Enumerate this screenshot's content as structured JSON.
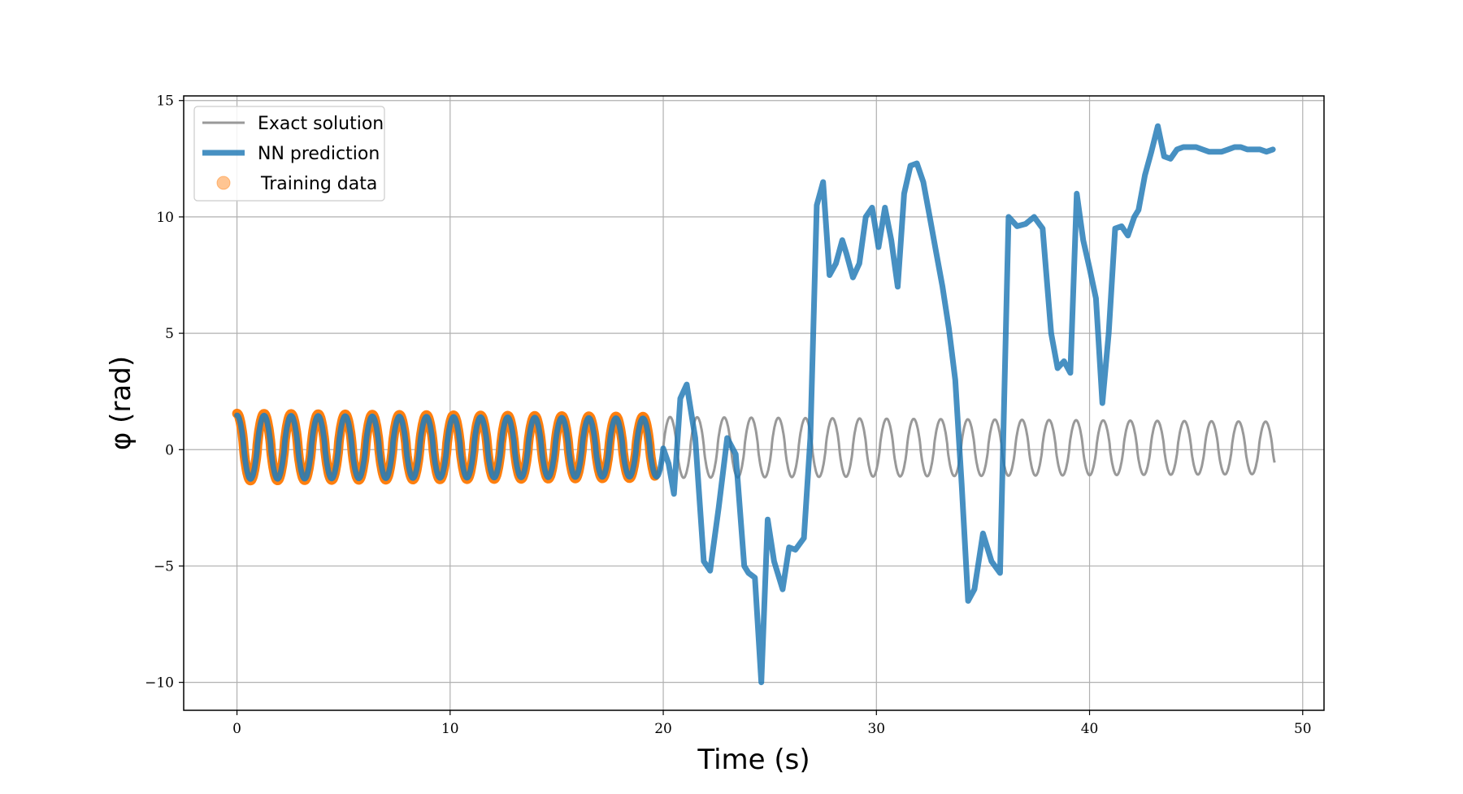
{
  "chart_data": {
    "type": "line",
    "xlabel": "Time (s)",
    "ylabel": "φ (rad)",
    "xlim": [
      -2.5,
      51
    ],
    "ylim": [
      -11.2,
      15.2
    ],
    "xticks": [
      0,
      10,
      20,
      30,
      40,
      50
    ],
    "yticks": [
      -10,
      -5,
      0,
      5,
      10,
      15
    ],
    "xtick_labels": [
      "0",
      "10",
      "20",
      "30",
      "40",
      "50"
    ],
    "ytick_labels": [
      "−10",
      "−5",
      "0",
      "5",
      "10",
      "15"
    ],
    "grid": true,
    "legend": {
      "placement": "top-left",
      "entries": [
        "Exact solution",
        "NN prediction",
        "Training data"
      ]
    },
    "colors": {
      "exact": "#999999",
      "nn": "#1f77b4",
      "training": "#ff7f0e",
      "grid": "#b0b0b0"
    },
    "series": [
      {
        "name": "Exact solution",
        "kind": "damped-oscillation",
        "x_range": [
          0,
          48.7
        ],
        "amplitude_start": 1.6,
        "amplitude_end": 1.25,
        "period": 1.27,
        "initial_value": 1.5
      },
      {
        "name": "NN prediction",
        "x": [
          0,
          20,
          20.25,
          20.5,
          20.8,
          21.1,
          21.5,
          21.9,
          22.2,
          22.6,
          23.0,
          23.4,
          23.8,
          24.0,
          24.3,
          24.6,
          24.9,
          25.2,
          25.6,
          25.9,
          26.2,
          26.6,
          26.9,
          27.2,
          27.5,
          27.8,
          28.1,
          28.4,
          28.6,
          28.9,
          29.2,
          29.5,
          29.8,
          30.1,
          30.4,
          30.7,
          31.0,
          31.3,
          31.6,
          31.9,
          32.2,
          32.5,
          32.8,
          33.1,
          33.4,
          33.7,
          34.0,
          34.3,
          34.6,
          35.0,
          35.4,
          35.8,
          36.2,
          36.6,
          37.0,
          37.4,
          37.8,
          38.2,
          38.5,
          38.8,
          39.1,
          39.4,
          39.7,
          40.0,
          40.3,
          40.6,
          40.9,
          41.2,
          41.5,
          41.8,
          42.1,
          42.3,
          42.6,
          42.9,
          43.2,
          43.5,
          43.8,
          44.1,
          44.4,
          44.7,
          45.0,
          45.3,
          45.6,
          45.9,
          46.2,
          46.5,
          46.8,
          47.1,
          47.4,
          47.7,
          48.0,
          48.3,
          48.6
        ],
        "y": [
          1.4,
          -0.7,
          -0.6,
          -1.9,
          2.2,
          2.8,
          0.5,
          -4.8,
          -5.2,
          -2.5,
          0.5,
          -0.2,
          -5.0,
          -5.3,
          -5.5,
          -10.0,
          -3.0,
          -4.8,
          -6.0,
          -4.2,
          -4.3,
          -3.8,
          0.5,
          10.5,
          11.5,
          7.5,
          8.0,
          9.0,
          8.4,
          7.4,
          8.0,
          10.0,
          10.4,
          8.7,
          10.4,
          9.0,
          7.0,
          11.0,
          12.2,
          12.3,
          11.5,
          10.0,
          8.5,
          7.0,
          5.2,
          3.0,
          -1.5,
          -6.5,
          -6.0,
          -3.6,
          -4.8,
          -5.3,
          10.0,
          9.6,
          9.7,
          10.0,
          9.5,
          5.0,
          3.5,
          3.8,
          3.3,
          11.0,
          9.0,
          7.8,
          6.5,
          2.0,
          5.0,
          9.5,
          9.6,
          9.2,
          10.0,
          10.3,
          11.8,
          12.8,
          13.9,
          12.6,
          12.5,
          12.9,
          13.0,
          13.0,
          13.0,
          12.9,
          12.8,
          12.8,
          12.8,
          12.9,
          13.0,
          13.0,
          12.9,
          12.9,
          12.9,
          12.8,
          12.9
        ]
      },
      {
        "name": "Training data",
        "kind": "points-on-exact",
        "x_range": [
          0,
          19.6
        ]
      }
    ]
  }
}
